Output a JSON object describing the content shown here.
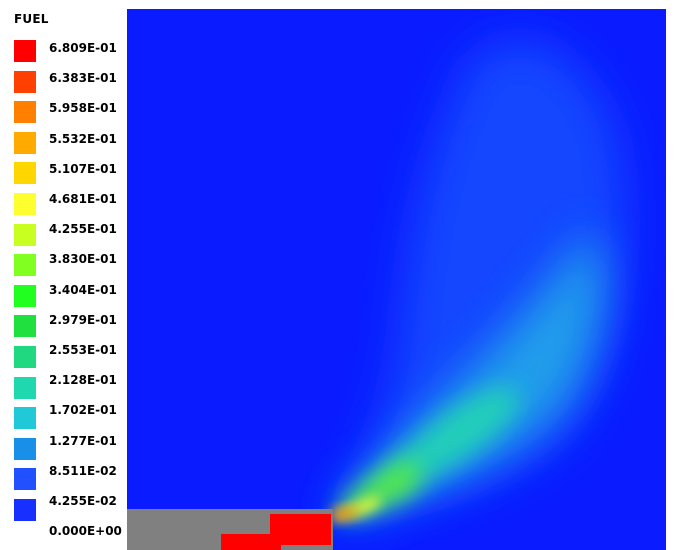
{
  "chart_data": {
    "type": "heatmap",
    "variable": "FUEL",
    "colorbar": {
      "labels": [
        "6.809E-01",
        "6.383E-01",
        "5.958E-01",
        "5.532E-01",
        "5.107E-01",
        "4.681E-01",
        "4.255E-01",
        "3.830E-01",
        "3.404E-01",
        "2.979E-01",
        "2.553E-01",
        "2.128E-01",
        "1.702E-01",
        "1.277E-01",
        "8.511E-02",
        "4.255E-02",
        "0.000E+00"
      ],
      "values": [
        0.6809,
        0.6383,
        0.5958,
        0.5532,
        0.5107,
        0.4681,
        0.4255,
        0.383,
        0.3404,
        0.2979,
        0.2553,
        0.2128,
        0.1702,
        0.1277,
        0.08511,
        0.04255,
        0.0
      ],
      "colors": [
        "#ff0000",
        "#ff4000",
        "#ff8000",
        "#ffaa00",
        "#ffd600",
        "#ffff30",
        "#c8ff20",
        "#80ff20",
        "#20ff20",
        "#20e040",
        "#20d880",
        "#20d8b0",
        "#20c8d8",
        "#1890e8",
        "#2050ff",
        "#1830ff",
        "#0010ff"
      ]
    },
    "background_color": "#0a1cff",
    "solid_color": "#808080",
    "inlet_color": "#ff0000"
  }
}
